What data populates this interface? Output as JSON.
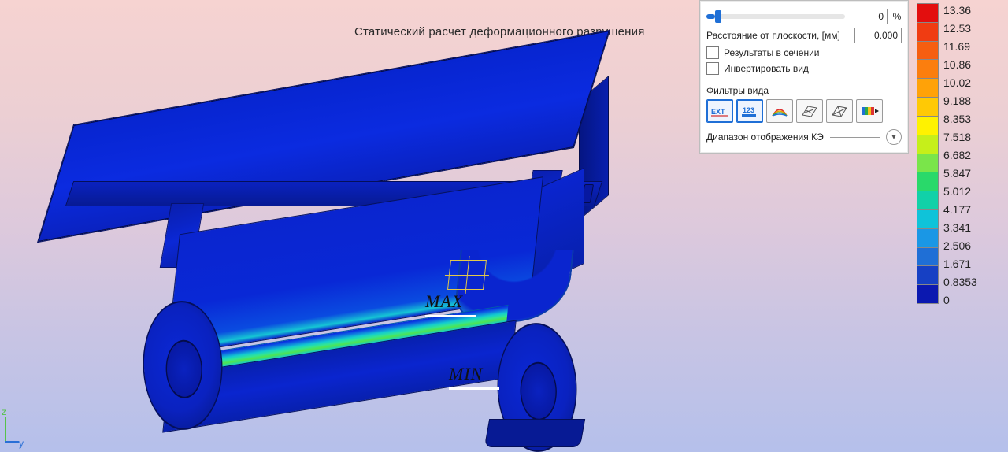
{
  "title": "Статический расчет деформационного разрушения",
  "markers": {
    "max": "MAX",
    "min": "MIN"
  },
  "axis": {
    "z": "z",
    "y": "y"
  },
  "panel": {
    "slider_value": "0",
    "percent_sign": "%",
    "distance_label": "Расстояние от плоскости, [мм]",
    "distance_value": "0.000",
    "chk_section_label": "Результаты в сечении",
    "chk_section_checked": false,
    "chk_invert_label": "Инвертировать вид",
    "chk_invert_checked": false,
    "filters_title": "Фильтры вида",
    "filters": [
      {
        "name": "ext-filter",
        "label": "EXT",
        "active": true
      },
      {
        "name": "numeric-filter",
        "label": "123",
        "active": true
      },
      {
        "name": "contour-filter",
        "label": "arc",
        "active": false
      },
      {
        "name": "mesh-filter-a",
        "label": "mesh",
        "active": false
      },
      {
        "name": "mesh-filter-b",
        "label": "mesh",
        "active": false
      },
      {
        "name": "palette-filter",
        "label": "pal",
        "active": false
      }
    ],
    "collapse_label": "Диапазон отображения КЭ"
  },
  "legend": {
    "labels": [
      "13.36",
      "12.53",
      "11.69",
      "10.86",
      "10.02",
      "9.188",
      "8.353",
      "7.518",
      "6.682",
      "5.847",
      "5.012",
      "4.177",
      "3.341",
      "2.506",
      "1.671",
      "0.8353",
      "0"
    ],
    "colors": [
      "#e30e0e",
      "#f03c12",
      "#f65e10",
      "#fb7e0e",
      "#ffa208",
      "#ffc905",
      "#fff200",
      "#c6ef1a",
      "#7ae54a",
      "#29d96a",
      "#11d1a8",
      "#0fc3d9",
      "#1a97e5",
      "#1f6fd6",
      "#1640c4",
      "#0b18b0"
    ],
    "label_fontsize": 14,
    "label_color": "#222222",
    "bar_border": "#888888"
  },
  "model_colors": {
    "base_blue": "#0a22c0",
    "bright_blue": "#0b28d6",
    "dark_edge": "#050f5a",
    "stress_band": [
      "#0a25cf",
      "#1564d6",
      "#20c7cc",
      "#3de19a",
      "#58e05a",
      "#20c7cc",
      "#0a25cf"
    ]
  },
  "background_gradient": [
    "#f6d3d1",
    "#eccfd3",
    "#ddc9dc",
    "#c7c4e4",
    "#b5c0eb"
  ]
}
